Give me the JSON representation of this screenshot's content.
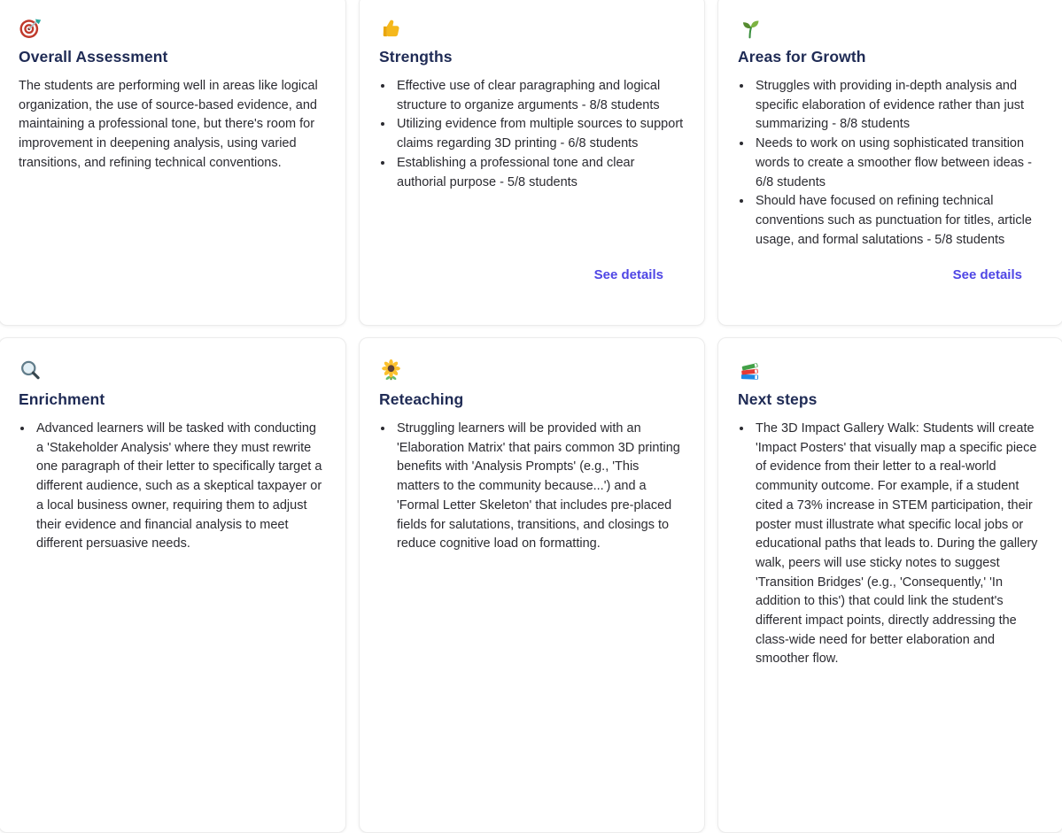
{
  "colors": {
    "heading": "#1f2b55",
    "body_text": "#2b2b31",
    "link": "#4f46e5",
    "card_border": "#ececec",
    "card_background": "#ffffff"
  },
  "cards": [
    {
      "icon": "target-icon",
      "title": "Overall Assessment",
      "paragraph": "The students are performing well in areas like logical organization, the use of source-based evidence, and maintaining a professional tone, but there's room for improvement in deepening analysis, using varied transitions, and refining technical conventions."
    },
    {
      "icon": "thumbs-up-icon",
      "title": "Strengths",
      "bullets": [
        "Effective use of clear paragraphing and logical structure to organize arguments - 8/8 students",
        "Utilizing evidence from multiple sources to support claims regarding 3D printing - 6/8 students",
        "Establishing a professional tone and clear authorial purpose - 5/8 students"
      ],
      "see_details": "See details"
    },
    {
      "icon": "seedling-icon",
      "title": "Areas for Growth",
      "bullets": [
        "Struggles with providing in-depth analysis and specific elaboration of evidence rather than just summarizing - 8/8 students",
        "Needs to work on using sophisticated transition words to create a smoother flow between ideas - 6/8 students",
        "Should have focused on refining technical conventions such as punctuation for titles, article usage, and formal salutations - 5/8 students"
      ],
      "see_details": "See details"
    },
    {
      "icon": "magnifier-icon",
      "title": "Enrichment",
      "bullets": [
        "Advanced learners will be tasked with conducting a 'Stakeholder Analysis' where they must rewrite one paragraph of their letter to specifically target a different audience, such as a skeptical taxpayer or a local business owner, requiring them to adjust their evidence and financial analysis to meet different persuasive needs."
      ]
    },
    {
      "icon": "sunflower-icon",
      "title": "Reteaching",
      "bullets": [
        "Struggling learners will be provided with an 'Elaboration Matrix' that pairs common 3D printing benefits with 'Analysis Prompts' (e.g., 'This matters to the community because...') and a 'Formal Letter Skeleton' that includes pre-placed fields for salutations, transitions, and closings to reduce cognitive load on formatting."
      ]
    },
    {
      "icon": "books-icon",
      "title": "Next steps",
      "bullets": [
        "The 3D Impact Gallery Walk: Students will create 'Impact Posters' that visually map a specific piece of evidence from their letter to a real-world community outcome. For example, if a student cited a 73% increase in STEM participation, their poster must illustrate what specific local jobs or educational paths that leads to. During the gallery walk, peers will use sticky notes to suggest 'Transition Bridges' (e.g., 'Consequently,' 'In addition to this') that could link the student's different impact points, directly addressing the class-wide need for better elaboration and smoother flow."
      ]
    }
  ]
}
